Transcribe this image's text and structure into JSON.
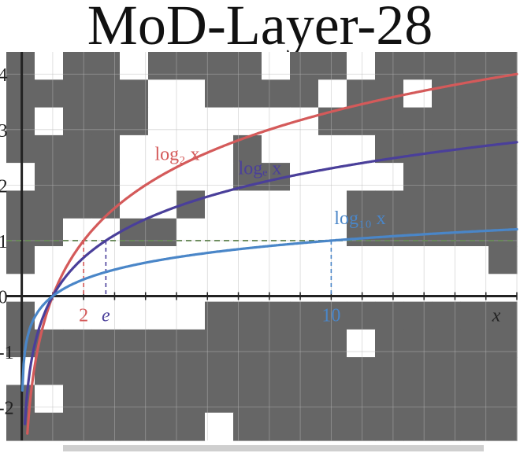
{
  "title": "MoD-Layer-28",
  "colors": {
    "mask": "#666666",
    "background": "#ffffff",
    "log2": "#d45a5a",
    "loge": "#4a3f9a",
    "log10": "#4a86c8",
    "dashed_line": "#6a8a5a"
  },
  "chart_data": {
    "type": "line",
    "title": "MoD-Layer-28",
    "xlabel": "x",
    "ylabel": "",
    "xlim": [
      -0.5,
      16.0
    ],
    "ylim": [
      -2.6,
      4.4
    ],
    "x_ticks": [
      {
        "value": 2,
        "label": "2",
        "color": "#d45a5a"
      },
      {
        "value": 2.718,
        "label": "e",
        "color": "#4a3f9a"
      },
      {
        "value": 10,
        "label": "10",
        "color": "#4a86c8"
      }
    ],
    "y_ticks": [
      {
        "value": 4,
        "label": "4"
      },
      {
        "value": 3,
        "label": "3"
      },
      {
        "value": 2,
        "label": "2"
      },
      {
        "value": 1,
        "label": "1"
      },
      {
        "value": 0,
        "label": "0"
      },
      {
        "value": -1,
        "label": "-1"
      },
      {
        "value": -2,
        "label": "-2"
      }
    ],
    "reference_lines": [
      {
        "orientation": "horizontal",
        "value": 1,
        "style": "dashed"
      }
    ],
    "series": [
      {
        "name": "log₂ x",
        "base": 2,
        "color": "#d45a5a",
        "label_x": 4.3,
        "label_y": 2.45
      },
      {
        "name": "logₑ x",
        "base": 2.718281828,
        "color": "#4a3f9a",
        "label_x": 7.0,
        "label_y": 2.2
      },
      {
        "name": "log₁₀ x",
        "base": 10,
        "color": "#4a86c8",
        "label_x": 10.1,
        "label_y": 1.3
      }
    ],
    "grid": true,
    "overlay": "token mask"
  }
}
